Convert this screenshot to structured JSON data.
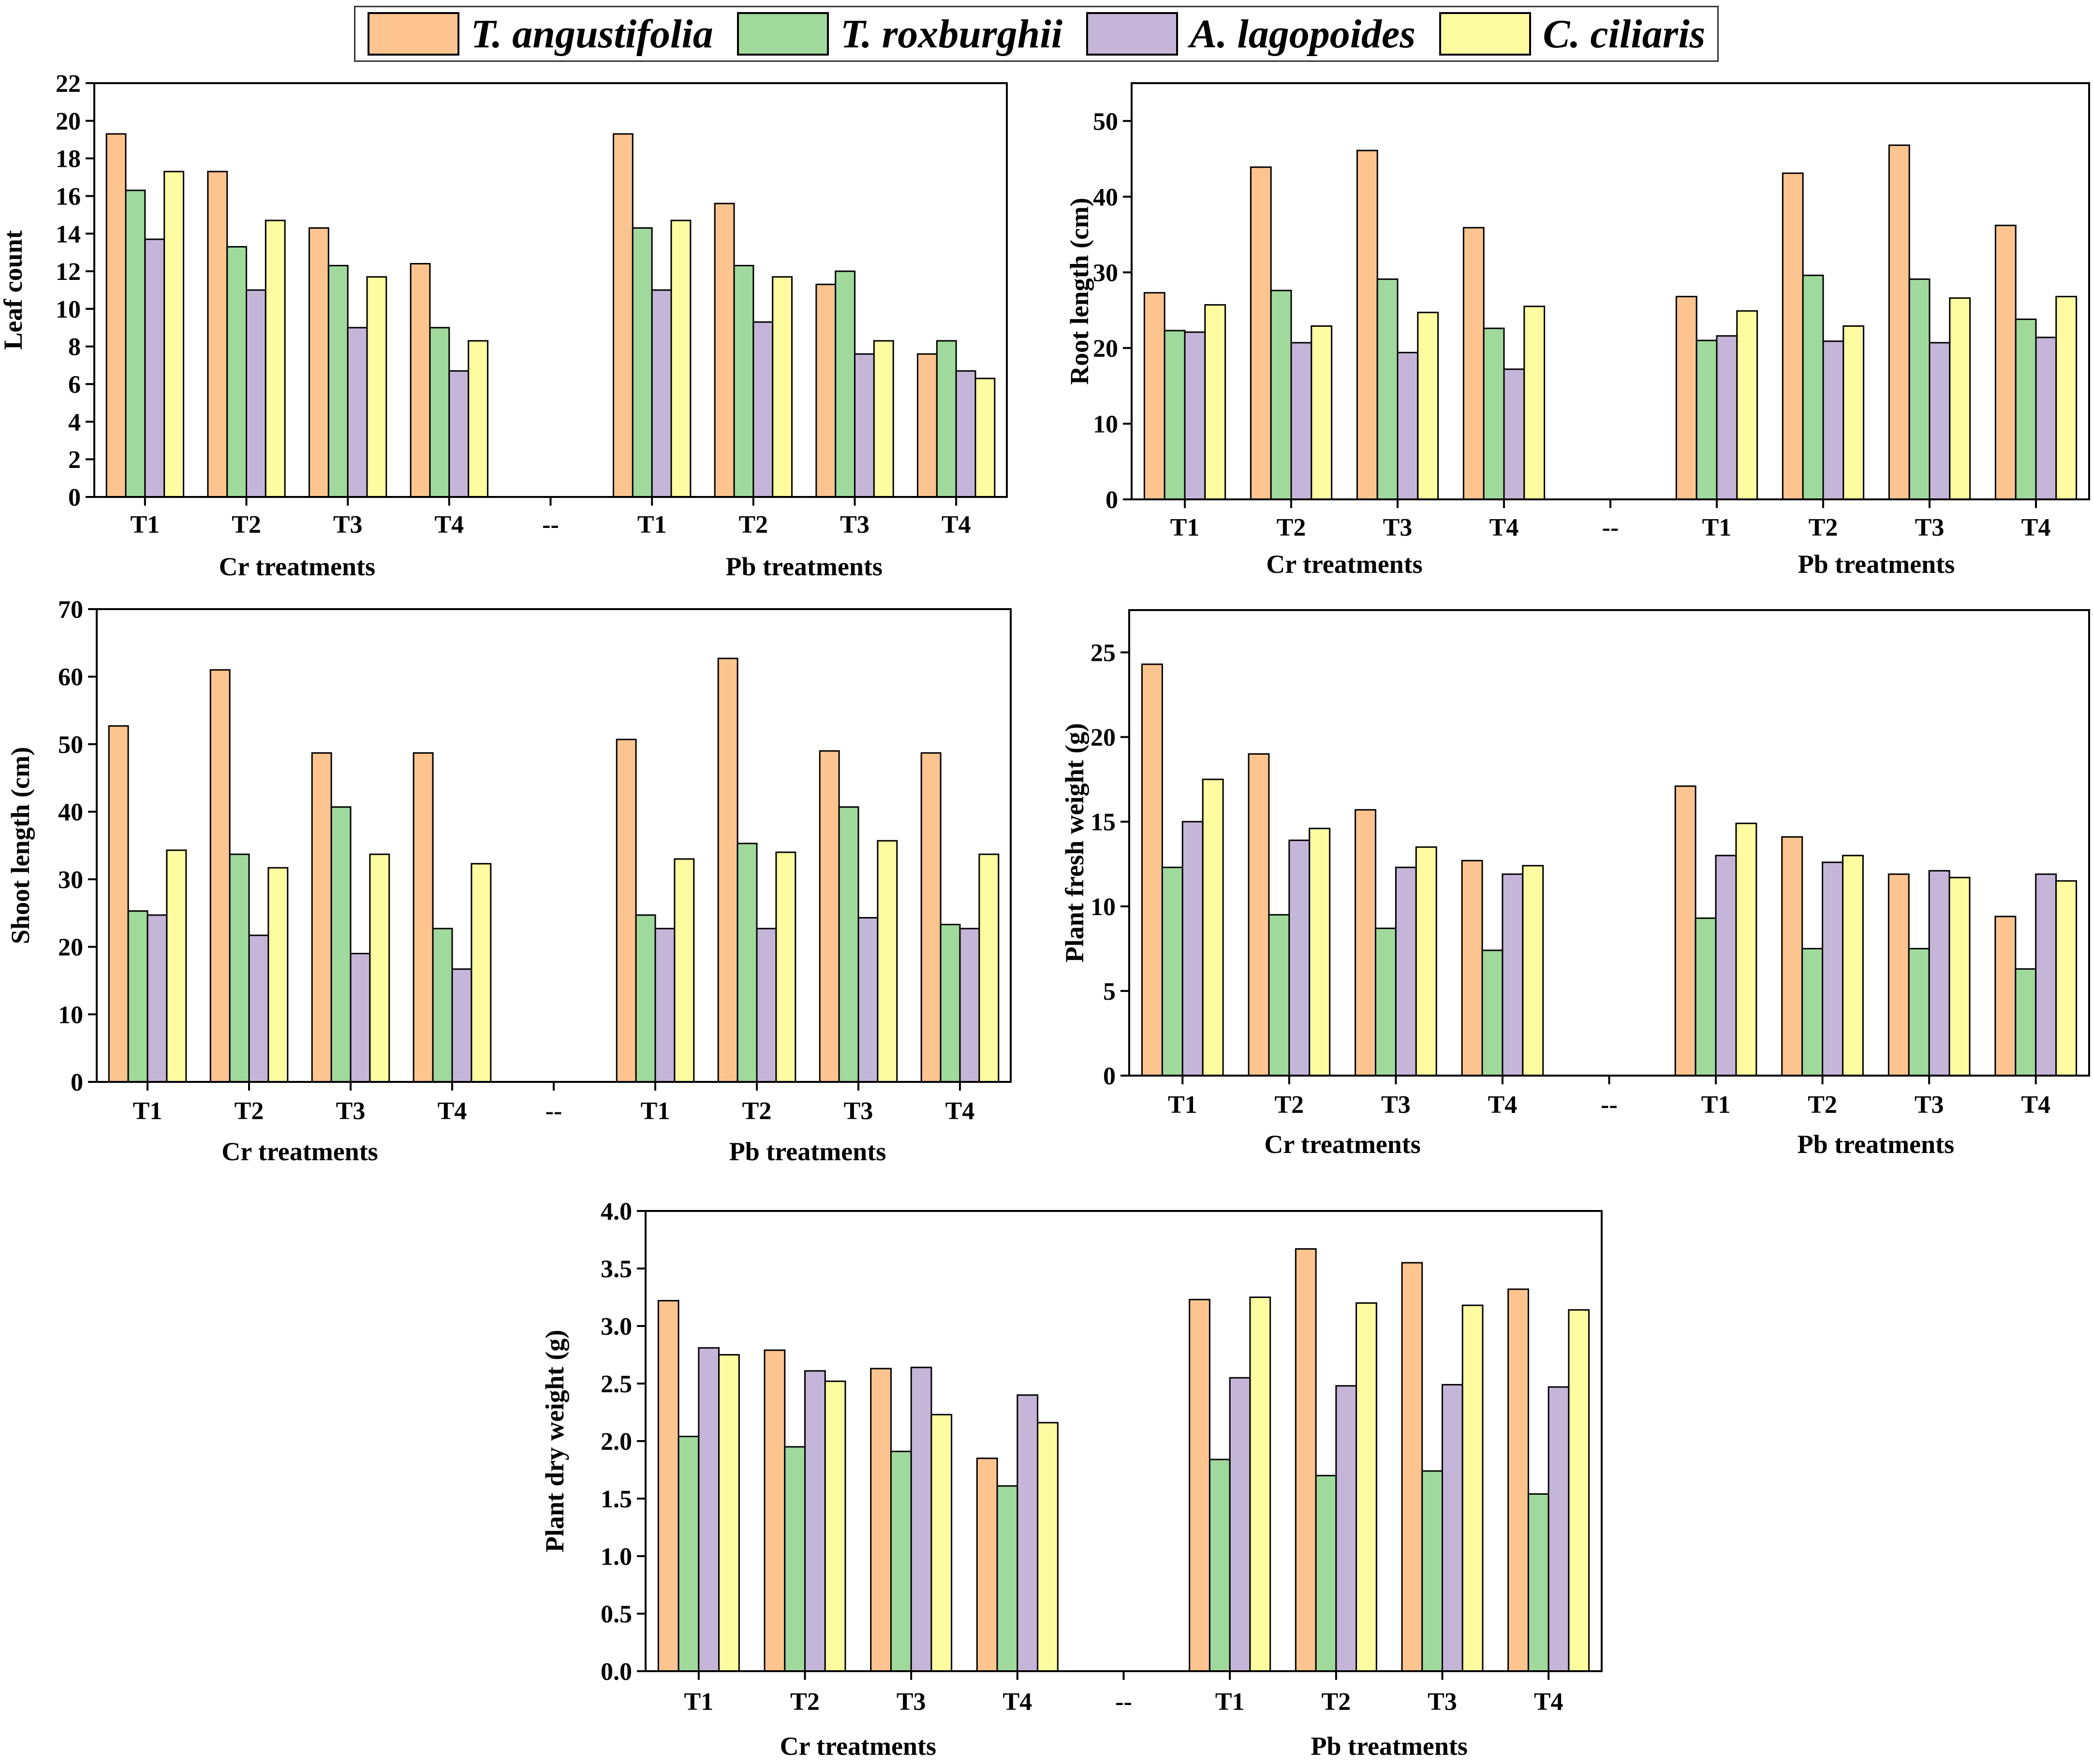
{
  "legend": [
    {
      "label": "T. angustifolia",
      "color": "#FDC490"
    },
    {
      "label": "T. roxburghii",
      "color": "#A0D99C"
    },
    {
      "label": "A. lagopoides",
      "color": "#C5B5D8"
    },
    {
      "label": "C. ciliaris",
      "color": "#FEFCA0"
    }
  ],
  "chart_data": [
    {
      "type": "bar",
      "ylabel": "Leaf count",
      "ylim": [
        0,
        22
      ],
      "yticks": [
        0,
        2,
        4,
        6,
        8,
        10,
        12,
        14,
        16,
        18,
        20,
        22
      ],
      "categories": [
        "T1",
        "T2",
        "T3",
        "T4",
        "--",
        "T1",
        "T2",
        "T3",
        "T4"
      ],
      "groups": [
        "Cr treatments",
        "Pb treatments"
      ],
      "series": [
        {
          "name": "T. angustifolia",
          "values": [
            19.3,
            17.3,
            14.3,
            12.4,
            null,
            19.3,
            15.6,
            11.3,
            7.6
          ]
        },
        {
          "name": "T. roxburghii",
          "values": [
            16.3,
            13.3,
            12.3,
            9.0,
            null,
            14.3,
            12.3,
            12.0,
            8.3
          ]
        },
        {
          "name": "A. lagopoides",
          "values": [
            13.7,
            11.0,
            9.0,
            6.7,
            null,
            11.0,
            9.3,
            7.6,
            6.7
          ]
        },
        {
          "name": "C. ciliaris",
          "values": [
            17.3,
            14.7,
            11.7,
            8.3,
            null,
            14.7,
            11.7,
            8.3,
            6.3
          ]
        }
      ]
    },
    {
      "type": "bar",
      "ylabel": "Root length (cm)",
      "ylim": [
        0,
        55
      ],
      "yticks": [
        0,
        10,
        20,
        30,
        40,
        50
      ],
      "categories": [
        "T1",
        "T2",
        "T3",
        "T4",
        "--",
        "T1",
        "T2",
        "T3",
        "T4"
      ],
      "groups": [
        "Cr treatments",
        "Pb treatments"
      ],
      "series": [
        {
          "name": "T. angustifolia",
          "values": [
            27.3,
            43.9,
            46.1,
            35.9,
            null,
            26.8,
            43.1,
            46.8,
            36.2
          ]
        },
        {
          "name": "T. roxburghii",
          "values": [
            22.3,
            27.6,
            29.1,
            22.6,
            null,
            21.0,
            29.6,
            29.1,
            23.8
          ]
        },
        {
          "name": "A. lagopoides",
          "values": [
            22.1,
            20.7,
            19.4,
            17.2,
            null,
            21.6,
            20.9,
            20.7,
            21.4
          ]
        },
        {
          "name": "C. ciliaris",
          "values": [
            25.7,
            22.9,
            24.7,
            25.5,
            null,
            24.9,
            22.9,
            26.6,
            26.8
          ]
        }
      ]
    },
    {
      "type": "bar",
      "ylabel": "Shoot length (cm)",
      "ylim": [
        0,
        70
      ],
      "yticks": [
        0,
        10,
        20,
        30,
        40,
        50,
        60,
        70
      ],
      "categories": [
        "T1",
        "T2",
        "T3",
        "T4",
        "--",
        "T1",
        "T2",
        "T3",
        "T4"
      ],
      "groups": [
        "Cr treatments",
        "Pb treatments"
      ],
      "series": [
        {
          "name": "T. angustifolia",
          "values": [
            52.7,
            61.0,
            48.7,
            48.7,
            null,
            50.7,
            62.7,
            49.0,
            48.7
          ]
        },
        {
          "name": "T. roxburghii",
          "values": [
            25.3,
            33.7,
            40.7,
            22.7,
            null,
            24.7,
            35.3,
            40.7,
            23.3
          ]
        },
        {
          "name": "A. lagopoides",
          "values": [
            24.7,
            21.7,
            19.0,
            16.7,
            null,
            22.7,
            22.7,
            24.3,
            22.7
          ]
        },
        {
          "name": "C. ciliaris",
          "values": [
            34.3,
            31.7,
            33.7,
            32.3,
            null,
            33.0,
            34.0,
            35.7,
            33.7
          ]
        }
      ]
    },
    {
      "type": "bar",
      "ylabel": "Plant fresh weight (g)",
      "ylim": [
        0,
        27.5
      ],
      "yticks": [
        0,
        5,
        10,
        15,
        20,
        25
      ],
      "categories": [
        "T1",
        "T2",
        "T3",
        "T4",
        "--",
        "T1",
        "T2",
        "T3",
        "T4"
      ],
      "groups": [
        "Cr treatments",
        "Pb treatments"
      ],
      "series": [
        {
          "name": "T. angustifolia",
          "values": [
            24.3,
            19.0,
            15.7,
            12.7,
            null,
            17.1,
            14.1,
            11.9,
            9.4
          ]
        },
        {
          "name": "T. roxburghii",
          "values": [
            12.3,
            9.5,
            8.7,
            7.4,
            null,
            9.3,
            7.5,
            7.5,
            6.3
          ]
        },
        {
          "name": "A. lagopoides",
          "values": [
            15.0,
            13.9,
            12.3,
            11.9,
            null,
            13.0,
            12.6,
            12.1,
            11.9
          ]
        },
        {
          "name": "C. ciliaris",
          "values": [
            17.5,
            14.6,
            13.5,
            12.4,
            null,
            14.9,
            13.0,
            11.7,
            11.5
          ]
        }
      ]
    },
    {
      "type": "bar",
      "ylabel": "Plant dry weight (g)",
      "ylim": [
        0,
        4.0
      ],
      "yticks": [
        "0.0",
        "0.5",
        "1.0",
        "1.5",
        "2.0",
        "2.5",
        "3.0",
        "3.5",
        "4.0"
      ],
      "categories": [
        "T1",
        "T2",
        "T3",
        "T4",
        "--",
        "T1",
        "T2",
        "T3",
        "T4"
      ],
      "groups": [
        "Cr treatments",
        "Pb treatments"
      ],
      "series": [
        {
          "name": "T. angustifolia",
          "values": [
            3.22,
            2.79,
            2.63,
            1.85,
            null,
            3.23,
            3.67,
            3.55,
            3.32
          ]
        },
        {
          "name": "T. roxburghii",
          "values": [
            2.04,
            1.95,
            1.91,
            1.61,
            null,
            1.84,
            1.7,
            1.74,
            1.54
          ]
        },
        {
          "name": "A. lagopoides",
          "values": [
            2.81,
            2.61,
            2.64,
            2.4,
            null,
            2.55,
            2.48,
            2.49,
            2.47
          ]
        },
        {
          "name": "C. ciliaris",
          "values": [
            2.75,
            2.52,
            2.23,
            2.16,
            null,
            3.25,
            3.2,
            3.18,
            3.14
          ]
        }
      ]
    }
  ]
}
